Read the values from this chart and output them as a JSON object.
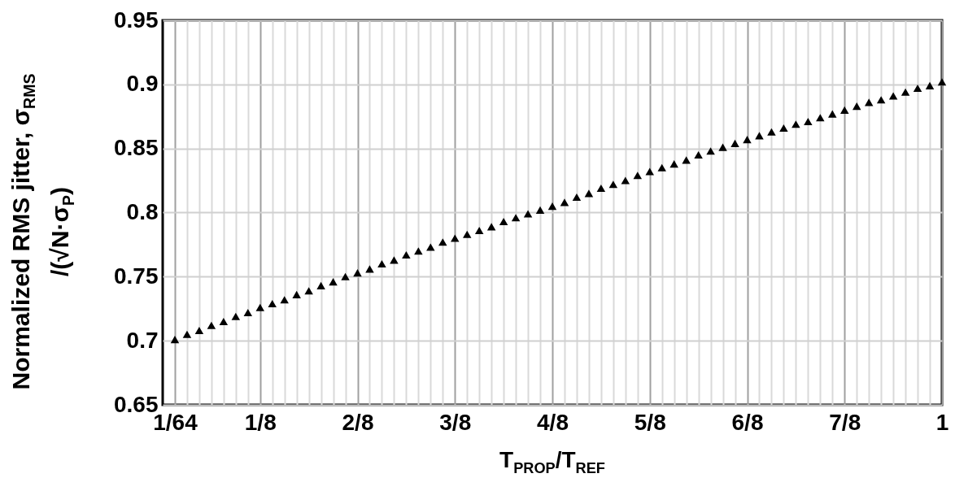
{
  "chart_data": {
    "type": "scatter",
    "xlabel": "T$_{PROP}$/T$_{REF}$",
    "ylabel": "Normalized RMS jitter, σ$_{RMS}$ /(√N·σ$_{P}$)",
    "x": [
      0.015625,
      0.03125,
      0.046875,
      0.0625,
      0.078125,
      0.09375,
      0.109375,
      0.125,
      0.140625,
      0.15625,
      0.171875,
      0.1875,
      0.203125,
      0.21875,
      0.234375,
      0.25,
      0.265625,
      0.28125,
      0.296875,
      0.3125,
      0.328125,
      0.34375,
      0.359375,
      0.375,
      0.390625,
      0.40625,
      0.421875,
      0.4375,
      0.453125,
      0.46875,
      0.484375,
      0.5,
      0.515625,
      0.53125,
      0.546875,
      0.5625,
      0.578125,
      0.59375,
      0.609375,
      0.625,
      0.640625,
      0.65625,
      0.671875,
      0.6875,
      0.703125,
      0.71875,
      0.734375,
      0.75,
      0.765625,
      0.78125,
      0.796875,
      0.8125,
      0.828125,
      0.84375,
      0.859375,
      0.875,
      0.890625,
      0.90625,
      0.921875,
      0.9375,
      0.953125,
      0.96875,
      0.984375,
      1
    ],
    "series": [
      {
        "color": "#000000",
        "values": [
          0.701,
          0.705,
          0.708,
          0.712,
          0.715,
          0.719,
          0.722,
          0.726,
          0.729,
          0.732,
          0.736,
          0.739,
          0.743,
          0.746,
          0.75,
          0.753,
          0.756,
          0.76,
          0.763,
          0.767,
          0.77,
          0.773,
          0.777,
          0.78,
          0.783,
          0.786,
          0.789,
          0.793,
          0.796,
          0.799,
          0.802,
          0.805,
          0.808,
          0.812,
          0.815,
          0.819,
          0.822,
          0.825,
          0.829,
          0.832,
          0.835,
          0.838,
          0.841,
          0.845,
          0.848,
          0.851,
          0.854,
          0.857,
          0.86,
          0.863,
          0.866,
          0.869,
          0.871,
          0.874,
          0.877,
          0.88,
          0.883,
          0.886,
          0.888,
          0.891,
          0.894,
          0.897,
          0.899,
          0.902
        ]
      }
    ],
    "xlim": [
      0,
      1
    ],
    "xticks": [
      {
        "value": 0.015625,
        "label": "1/64"
      },
      {
        "value": 0.03125,
        "label": null
      },
      {
        "value": 0.046875,
        "label": null
      },
      {
        "value": 0.0625,
        "label": null
      },
      {
        "value": 0.078125,
        "label": null
      },
      {
        "value": 0.09375,
        "label": null
      },
      {
        "value": 0.109375,
        "label": null
      },
      {
        "value": 0.125,
        "label": "1/8"
      },
      {
        "value": 0.140625,
        "label": null
      },
      {
        "value": 0.15625,
        "label": null
      },
      {
        "value": 0.171875,
        "label": null
      },
      {
        "value": 0.1875,
        "label": null
      },
      {
        "value": 0.203125,
        "label": null
      },
      {
        "value": 0.21875,
        "label": null
      },
      {
        "value": 0.234375,
        "label": null
      },
      {
        "value": 0.25,
        "label": "2/8"
      },
      {
        "value": 0.265625,
        "label": null
      },
      {
        "value": 0.28125,
        "label": null
      },
      {
        "value": 0.296875,
        "label": null
      },
      {
        "value": 0.3125,
        "label": null
      },
      {
        "value": 0.328125,
        "label": null
      },
      {
        "value": 0.34375,
        "label": null
      },
      {
        "value": 0.359375,
        "label": null
      },
      {
        "value": 0.375,
        "label": "3/8"
      },
      {
        "value": 0.390625,
        "label": null
      },
      {
        "value": 0.40625,
        "label": null
      },
      {
        "value": 0.421875,
        "label": null
      },
      {
        "value": 0.4375,
        "label": null
      },
      {
        "value": 0.453125,
        "label": null
      },
      {
        "value": 0.46875,
        "label": null
      },
      {
        "value": 0.484375,
        "label": null
      },
      {
        "value": 0.5,
        "label": "4/8"
      },
      {
        "value": 0.515625,
        "label": null
      },
      {
        "value": 0.53125,
        "label": null
      },
      {
        "value": 0.546875,
        "label": null
      },
      {
        "value": 0.5625,
        "label": null
      },
      {
        "value": 0.578125,
        "label": null
      },
      {
        "value": 0.59375,
        "label": null
      },
      {
        "value": 0.609375,
        "label": null
      },
      {
        "value": 0.625,
        "label": "5/8"
      },
      {
        "value": 0.640625,
        "label": null
      },
      {
        "value": 0.65625,
        "label": null
      },
      {
        "value": 0.671875,
        "label": null
      },
      {
        "value": 0.6875,
        "label": null
      },
      {
        "value": 0.703125,
        "label": null
      },
      {
        "value": 0.71875,
        "label": null
      },
      {
        "value": 0.734375,
        "label": null
      },
      {
        "value": 0.75,
        "label": "6/8"
      },
      {
        "value": 0.765625,
        "label": null
      },
      {
        "value": 0.78125,
        "label": null
      },
      {
        "value": 0.796875,
        "label": null
      },
      {
        "value": 0.8125,
        "label": null
      },
      {
        "value": 0.828125,
        "label": null
      },
      {
        "value": 0.84375,
        "label": null
      },
      {
        "value": 0.859375,
        "label": null
      },
      {
        "value": 0.875,
        "label": "7/8"
      },
      {
        "value": 0.890625,
        "label": null
      },
      {
        "value": 0.90625,
        "label": null
      },
      {
        "value": 0.921875,
        "label": null
      },
      {
        "value": 0.9375,
        "label": null
      },
      {
        "value": 0.953125,
        "label": null
      },
      {
        "value": 0.96875,
        "label": null
      },
      {
        "value": 0.984375,
        "label": null
      },
      {
        "value": 1,
        "label": "1"
      }
    ],
    "ylim": [
      0.65,
      0.95
    ],
    "yticks": [
      0.65,
      0.7,
      0.75,
      0.8,
      0.85,
      0.9,
      0.95
    ],
    "grid": true,
    "marker": "triangle"
  }
}
